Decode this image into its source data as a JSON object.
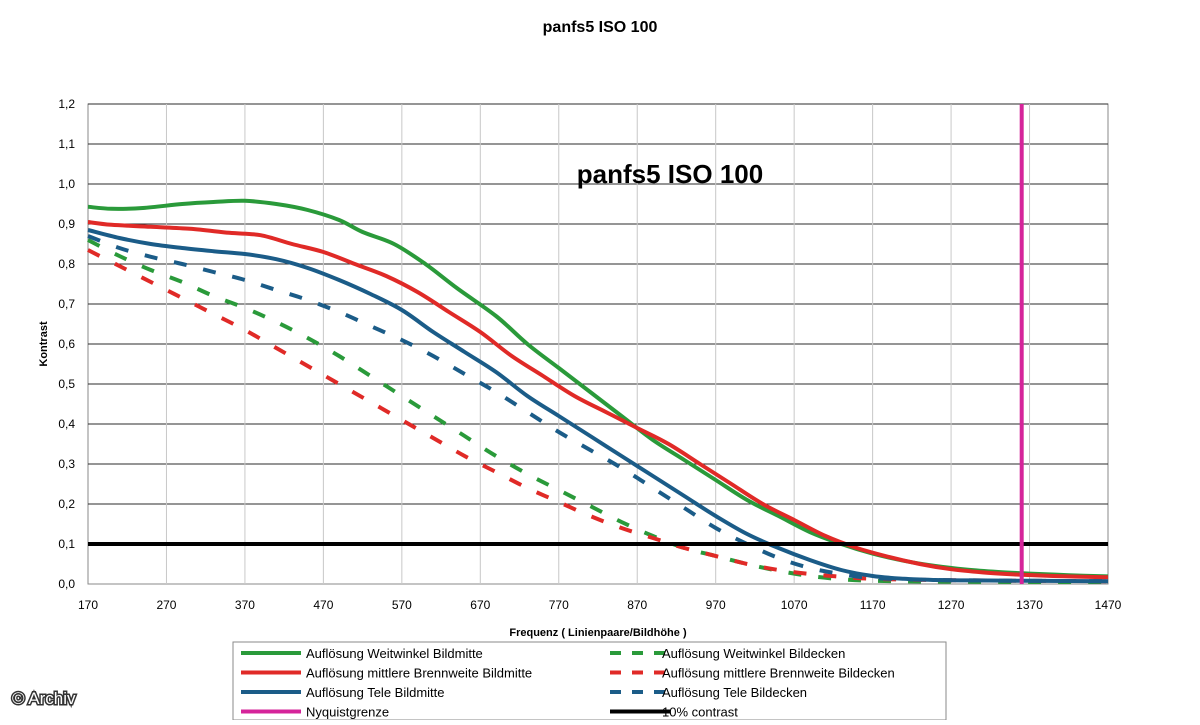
{
  "chart_data": {
    "type": "line",
    "title": "panfs5 ISO 100",
    "inner_title": "panfs5 ISO 100",
    "xlabel": "Frequenz ( Linienpaare/Bildhöhe )",
    "ylabel": "Kontrast",
    "xlim": [
      170,
      1470
    ],
    "ylim": [
      0,
      1.2
    ],
    "x_ticks": [
      "170",
      "270",
      "370",
      "470",
      "570",
      "670",
      "770",
      "870",
      "970",
      "1070",
      "1170",
      "1270",
      "1370",
      "1470"
    ],
    "y_ticks": [
      "0,0",
      "0,1",
      "0,2",
      "0,3",
      "0,4",
      "0,5",
      "0,6",
      "0,7",
      "0,8",
      "0,9",
      "1,0",
      "1,1",
      "1,2"
    ],
    "grid": true,
    "legend_position": "bottom",
    "series": [
      {
        "name": "Auflösung Weitwinkel Bildmitte",
        "color": "#2a9a3a",
        "style": "solid",
        "points": [
          [
            170,
            0.943
          ],
          [
            200,
            0.938
          ],
          [
            240,
            0.94
          ],
          [
            290,
            0.95
          ],
          [
            330,
            0.955
          ],
          [
            370,
            0.958
          ],
          [
            410,
            0.95
          ],
          [
            450,
            0.935
          ],
          [
            490,
            0.91
          ],
          [
            520,
            0.88
          ],
          [
            560,
            0.85
          ],
          [
            600,
            0.8
          ],
          [
            640,
            0.74
          ],
          [
            690,
            0.67
          ],
          [
            730,
            0.6
          ],
          [
            770,
            0.54
          ],
          [
            810,
            0.48
          ],
          [
            850,
            0.42
          ],
          [
            890,
            0.36
          ],
          [
            930,
            0.31
          ],
          [
            970,
            0.26
          ],
          [
            1010,
            0.21
          ],
          [
            1050,
            0.17
          ],
          [
            1090,
            0.13
          ],
          [
            1130,
            0.1
          ],
          [
            1170,
            0.076
          ],
          [
            1210,
            0.058
          ],
          [
            1250,
            0.045
          ],
          [
            1290,
            0.036
          ],
          [
            1330,
            0.03
          ],
          [
            1370,
            0.026
          ],
          [
            1420,
            0.022
          ],
          [
            1470,
            0.019
          ]
        ]
      },
      {
        "name": "Auflösung mittlere Brennweite Bildmitte",
        "color": "#e02a27",
        "style": "solid",
        "points": [
          [
            170,
            0.905
          ],
          [
            200,
            0.898
          ],
          [
            250,
            0.893
          ],
          [
            300,
            0.888
          ],
          [
            350,
            0.878
          ],
          [
            390,
            0.872
          ],
          [
            430,
            0.85
          ],
          [
            470,
            0.83
          ],
          [
            510,
            0.8
          ],
          [
            550,
            0.77
          ],
          [
            590,
            0.73
          ],
          [
            630,
            0.68
          ],
          [
            670,
            0.63
          ],
          [
            710,
            0.57
          ],
          [
            750,
            0.52
          ],
          [
            790,
            0.47
          ],
          [
            830,
            0.43
          ],
          [
            870,
            0.39
          ],
          [
            910,
            0.35
          ],
          [
            950,
            0.3
          ],
          [
            990,
            0.25
          ],
          [
            1030,
            0.2
          ],
          [
            1070,
            0.16
          ],
          [
            1110,
            0.12
          ],
          [
            1150,
            0.09
          ],
          [
            1190,
            0.068
          ],
          [
            1230,
            0.05
          ],
          [
            1270,
            0.037
          ],
          [
            1310,
            0.029
          ],
          [
            1350,
            0.024
          ],
          [
            1400,
            0.02
          ],
          [
            1470,
            0.017
          ]
        ]
      },
      {
        "name": "Auflösung Tele Bildmitte",
        "color": "#1b5c88",
        "style": "solid",
        "points": [
          [
            170,
            0.885
          ],
          [
            210,
            0.865
          ],
          [
            250,
            0.85
          ],
          [
            290,
            0.84
          ],
          [
            330,
            0.832
          ],
          [
            370,
            0.825
          ],
          [
            410,
            0.812
          ],
          [
            450,
            0.79
          ],
          [
            490,
            0.76
          ],
          [
            530,
            0.725
          ],
          [
            570,
            0.685
          ],
          [
            610,
            0.63
          ],
          [
            650,
            0.58
          ],
          [
            690,
            0.53
          ],
          [
            730,
            0.47
          ],
          [
            770,
            0.42
          ],
          [
            810,
            0.37
          ],
          [
            850,
            0.32
          ],
          [
            890,
            0.27
          ],
          [
            930,
            0.22
          ],
          [
            970,
            0.17
          ],
          [
            1010,
            0.125
          ],
          [
            1050,
            0.09
          ],
          [
            1090,
            0.06
          ],
          [
            1130,
            0.035
          ],
          [
            1170,
            0.02
          ],
          [
            1210,
            0.013
          ],
          [
            1250,
            0.01
          ],
          [
            1300,
            0.009
          ],
          [
            1370,
            0.008
          ],
          [
            1470,
            0.007
          ]
        ]
      },
      {
        "name": "Auflösung Weitwinkel Bildecken",
        "color": "#2a9a3a",
        "style": "dashed",
        "points": [
          [
            170,
            0.86
          ],
          [
            210,
            0.82
          ],
          [
            250,
            0.785
          ],
          [
            290,
            0.755
          ],
          [
            330,
            0.72
          ],
          [
            370,
            0.69
          ],
          [
            410,
            0.655
          ],
          [
            450,
            0.615
          ],
          [
            490,
            0.57
          ],
          [
            530,
            0.52
          ],
          [
            570,
            0.47
          ],
          [
            610,
            0.42
          ],
          [
            650,
            0.37
          ],
          [
            690,
            0.32
          ],
          [
            730,
            0.275
          ],
          [
            770,
            0.235
          ],
          [
            810,
            0.195
          ],
          [
            850,
            0.155
          ],
          [
            890,
            0.12
          ],
          [
            930,
            0.09
          ],
          [
            970,
            0.07
          ],
          [
            1010,
            0.05
          ],
          [
            1050,
            0.033
          ],
          [
            1090,
            0.02
          ],
          [
            1130,
            0.012
          ],
          [
            1170,
            0.008
          ],
          [
            1250,
            0.006
          ],
          [
            1370,
            0.005
          ],
          [
            1470,
            0.005
          ]
        ]
      },
      {
        "name": "Auflösung mittlere Brennweite Bildecken",
        "color": "#e02a27",
        "style": "dashed",
        "points": [
          [
            170,
            0.835
          ],
          [
            210,
            0.795
          ],
          [
            250,
            0.755
          ],
          [
            290,
            0.715
          ],
          [
            330,
            0.675
          ],
          [
            370,
            0.635
          ],
          [
            410,
            0.59
          ],
          [
            450,
            0.545
          ],
          [
            490,
            0.5
          ],
          [
            530,
            0.455
          ],
          [
            570,
            0.41
          ],
          [
            610,
            0.365
          ],
          [
            650,
            0.32
          ],
          [
            690,
            0.28
          ],
          [
            730,
            0.24
          ],
          [
            770,
            0.205
          ],
          [
            810,
            0.17
          ],
          [
            850,
            0.14
          ],
          [
            890,
            0.115
          ],
          [
            930,
            0.09
          ],
          [
            970,
            0.07
          ],
          [
            1010,
            0.05
          ],
          [
            1050,
            0.035
          ],
          [
            1090,
            0.025
          ],
          [
            1130,
            0.018
          ],
          [
            1170,
            0.013
          ],
          [
            1250,
            0.01
          ],
          [
            1370,
            0.008
          ],
          [
            1470,
            0.007
          ]
        ]
      },
      {
        "name": "Auflösung Tele Bildecken",
        "color": "#1b5c88",
        "style": "dashed",
        "points": [
          [
            170,
            0.87
          ],
          [
            210,
            0.84
          ],
          [
            250,
            0.818
          ],
          [
            290,
            0.8
          ],
          [
            330,
            0.78
          ],
          [
            370,
            0.76
          ],
          [
            410,
            0.735
          ],
          [
            450,
            0.71
          ],
          [
            490,
            0.68
          ],
          [
            530,
            0.645
          ],
          [
            570,
            0.61
          ],
          [
            610,
            0.57
          ],
          [
            650,
            0.525
          ],
          [
            690,
            0.48
          ],
          [
            730,
            0.43
          ],
          [
            770,
            0.38
          ],
          [
            810,
            0.335
          ],
          [
            850,
            0.29
          ],
          [
            890,
            0.24
          ],
          [
            930,
            0.19
          ],
          [
            970,
            0.14
          ],
          [
            1010,
            0.1
          ],
          [
            1050,
            0.065
          ],
          [
            1090,
            0.04
          ],
          [
            1130,
            0.025
          ],
          [
            1170,
            0.015
          ],
          [
            1250,
            0.01
          ],
          [
            1370,
            0.008
          ],
          [
            1470,
            0.007
          ]
        ]
      }
    ],
    "nyquist": {
      "name": "Nyquistgrenze",
      "color": "#d5249a",
      "x": 1360
    },
    "contrast_line": {
      "name": "10% contrast",
      "color": "#000000",
      "y": 0.1
    },
    "legend": [
      {
        "label": "Auflösung Weitwinkel Bildmitte",
        "color": "#2a9a3a",
        "style": "solid"
      },
      {
        "label": "Auflösung Weitwinkel Bildecken",
        "color": "#2a9a3a",
        "style": "dashed"
      },
      {
        "label": "Auflösung mittlere Brennweite Bildmitte",
        "color": "#e02a27",
        "style": "solid"
      },
      {
        "label": "Auflösung mittlere Brennweite Bildecken",
        "color": "#e02a27",
        "style": "dashed"
      },
      {
        "label": "Auflösung Tele Bildmitte",
        "color": "#1b5c88",
        "style": "solid"
      },
      {
        "label": "Auflösung Tele Bildecken",
        "color": "#1b5c88",
        "style": "dashed"
      },
      {
        "label": "Nyquistgrenze",
        "color": "#d5249a",
        "style": "solid"
      },
      {
        "label": "10% contrast",
        "color": "#000000",
        "style": "solid"
      }
    ]
  },
  "credit": "© Archiv"
}
